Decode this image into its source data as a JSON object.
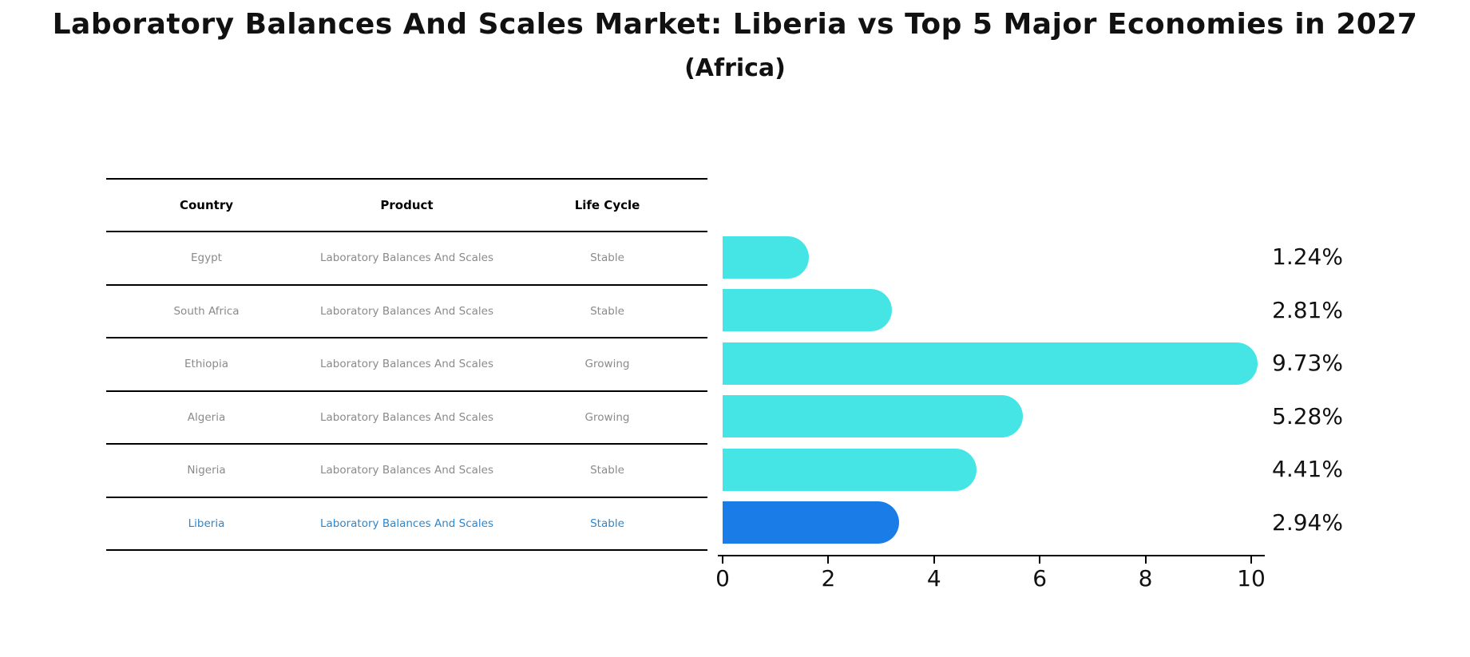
{
  "title": "Laboratory Balances And Scales Market: Liberia vs Top 5 Major Economies in 2027",
  "subtitle": "(Africa)",
  "table": {
    "headers": [
      "Country",
      "Product",
      "Life Cycle"
    ],
    "rows": [
      {
        "country": "Egypt",
        "product": "Laboratory Balances And Scales",
        "life_cycle": "Stable"
      },
      {
        "country": "South Africa",
        "product": "Laboratory Balances And Scales",
        "life_cycle": "Stable"
      },
      {
        "country": "Ethiopia",
        "product": "Laboratory Balances And Scales",
        "life_cycle": "Growing"
      },
      {
        "country": "Algeria",
        "product": "Laboratory Balances And Scales",
        "life_cycle": "Growing"
      },
      {
        "country": "Nigeria",
        "product": "Laboratory Balances And Scales",
        "life_cycle": "Stable"
      },
      {
        "country": "Liberia",
        "product": "Laboratory Balances And Scales",
        "life_cycle": "Stable"
      }
    ]
  },
  "chart_data": {
    "type": "bar",
    "orientation": "horizontal",
    "categories": [
      "Egypt",
      "South Africa",
      "Ethiopia",
      "Algeria",
      "Nigeria",
      "Liberia"
    ],
    "values": [
      1.24,
      2.81,
      9.73,
      5.28,
      4.41,
      2.94
    ],
    "value_labels": [
      "1.24%",
      "2.81%",
      "9.73%",
      "5.28%",
      "4.41%",
      "2.94%"
    ],
    "x_ticks": [
      "0",
      "2",
      "4",
      "6",
      "8",
      "10"
    ],
    "x_tick_values": [
      0,
      2,
      4,
      6,
      8,
      10
    ],
    "xlim": [
      0,
      10.25
    ],
    "grid": false,
    "legend": false,
    "highlight_index": 5,
    "highlight_category": "Liberia"
  },
  "colors": {
    "bar_color": "#45e5e5",
    "highlight_bar_color": "#1a7de7",
    "highlight_text_color": "#2e86cc",
    "table_text_color": "#8a8a8a",
    "axis_color": "#000000"
  }
}
